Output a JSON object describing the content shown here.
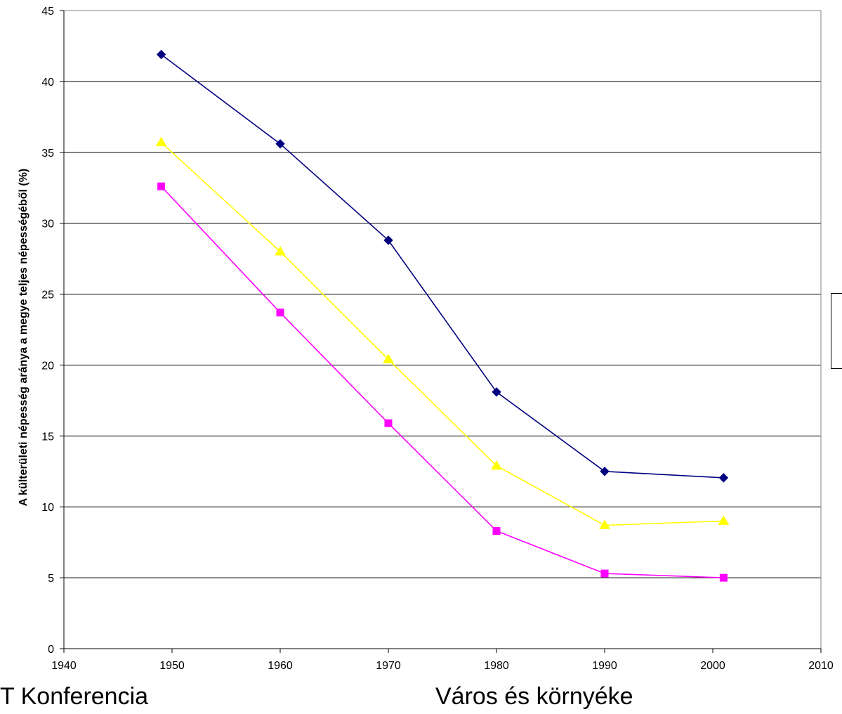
{
  "chart_data": {
    "type": "line",
    "title": "",
    "xlabel": "",
    "ylabel": "A külterületi népesség aránya a megye teljes népességéből (%)",
    "xlim": [
      1940,
      2010
    ],
    "ylim": [
      0,
      45
    ],
    "xticks": [
      1940,
      1950,
      1960,
      1970,
      1980,
      1990,
      2000,
      2010
    ],
    "yticks": [
      0,
      5,
      10,
      15,
      20,
      25,
      30,
      35,
      40,
      45
    ],
    "grid": "horizontal",
    "legend": "right",
    "series": [
      {
        "color": "#000080",
        "marker": "diamond",
        "x": [
          1949,
          1960,
          1970,
          1980,
          1990,
          2001
        ],
        "y": [
          41.9,
          35.6,
          28.8,
          18.1,
          12.5,
          12.05
        ]
      },
      {
        "color": "#ffff00",
        "marker": "triangle",
        "x": [
          1949,
          1960,
          1970,
          1980,
          1990,
          2001
        ],
        "y": [
          35.7,
          28.0,
          20.4,
          12.9,
          8.7,
          9.0
        ]
      },
      {
        "color": "#ff00ff",
        "marker": "square",
        "x": [
          1949,
          1960,
          1970,
          1980,
          1990,
          2001
        ],
        "y": [
          32.6,
          23.7,
          15.9,
          8.3,
          5.3,
          5.0
        ]
      }
    ]
  },
  "footer": {
    "left_text": "T Konferencia",
    "right_text": "Város és környéke"
  }
}
